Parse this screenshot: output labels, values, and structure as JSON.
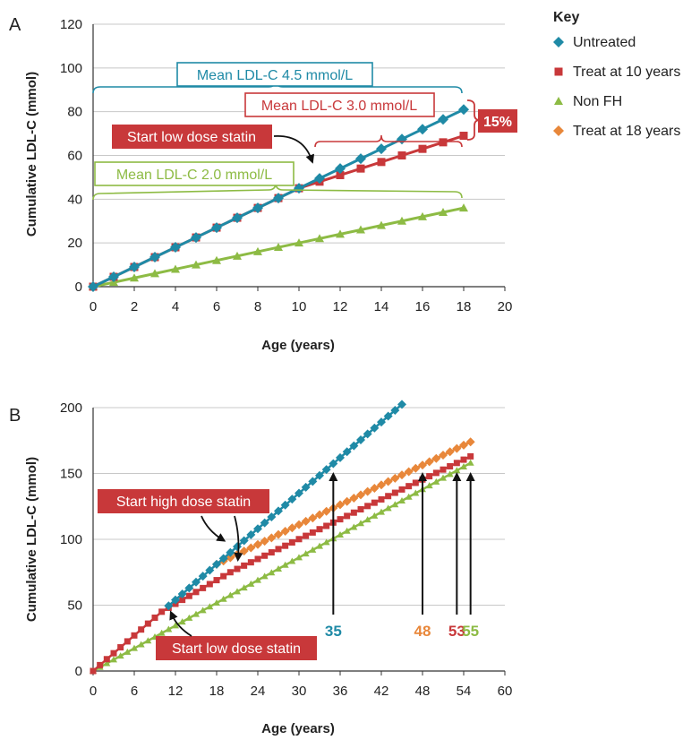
{
  "colors": {
    "untreated": "#1f8aa6",
    "treat10": "#c8383a",
    "nonfh": "#8dbb44",
    "treat18": "#e8873a"
  },
  "key": {
    "title": "Key",
    "items": [
      "Untreated",
      "Treat at 10 years",
      "Non FH",
      "Treat at 18 years"
    ],
    "markers": [
      "diamond",
      "square",
      "triangle",
      "diamond"
    ]
  },
  "chart_data": [
    {
      "panel": "A",
      "type": "line",
      "xlabel": "Age (years)",
      "ylabel": "Cumulative LDL-C (mmol)",
      "xlim": [
        0,
        20
      ],
      "ylim": [
        0,
        120
      ],
      "xticks": [
        0,
        2,
        4,
        6,
        8,
        10,
        12,
        14,
        16,
        18,
        20
      ],
      "yticks": [
        0,
        20,
        40,
        60,
        80,
        100,
        120
      ],
      "series": [
        {
          "name": "Untreated",
          "x": [
            0,
            1,
            2,
            3,
            4,
            5,
            6,
            7,
            8,
            9,
            10,
            11,
            12,
            13,
            14,
            15,
            16,
            17,
            18
          ],
          "values": [
            0,
            4.5,
            9,
            13.5,
            18,
            22.5,
            27,
            31.5,
            36,
            40.5,
            45,
            49.5,
            54,
            58.5,
            63,
            67.5,
            72,
            76.5,
            81
          ]
        },
        {
          "name": "Treat at 10 years",
          "x": [
            0,
            1,
            2,
            3,
            4,
            5,
            6,
            7,
            8,
            9,
            10,
            11,
            12,
            13,
            14,
            15,
            16,
            17,
            18
          ],
          "values": [
            0,
            4.5,
            9,
            13.5,
            18,
            22.5,
            27,
            31.5,
            36,
            40.5,
            45,
            48,
            51,
            54,
            57,
            60,
            63,
            66,
            69
          ]
        },
        {
          "name": "Non FH",
          "x": [
            0,
            1,
            2,
            3,
            4,
            5,
            6,
            7,
            8,
            9,
            10,
            11,
            12,
            13,
            14,
            15,
            16,
            17,
            18
          ],
          "values": [
            0,
            2,
            4,
            6,
            8,
            10,
            12,
            14,
            16,
            18,
            20,
            22,
            24,
            26,
            28,
            30,
            32,
            34,
            36
          ]
        }
      ],
      "annotations": {
        "mean_untreated": "Mean LDL-C 4.5 mmol/L",
        "mean_treat": "Mean LDL-C 3.0 mmol/L",
        "mean_nonfh": "Mean LDL-C 2.0 mmol/L",
        "start_low": "Start low dose statin",
        "diff": "15%"
      }
    },
    {
      "panel": "B",
      "type": "line",
      "xlabel": "Age (years)",
      "ylabel": "Cumulative LDL-C (mmol)",
      "xlim": [
        0,
        60
      ],
      "ylim": [
        0,
        200
      ],
      "xticks": [
        0,
        6,
        12,
        18,
        24,
        30,
        36,
        42,
        48,
        54,
        60
      ],
      "yticks": [
        0,
        50,
        100,
        150,
        200
      ],
      "series": [
        {
          "name": "Untreated",
          "x_start": 11,
          "x_end": 45,
          "y_start": 49.5,
          "y_end": 202.5
        },
        {
          "name": "Treat at 10 years",
          "x_start": 0,
          "x_end": 55,
          "piecewise": [
            [
              0,
              0
            ],
            [
              10,
              45
            ],
            [
              20,
              75
            ],
            [
              55,
              163
            ]
          ]
        },
        {
          "name": "Non FH",
          "x_start": 0,
          "x_end": 55,
          "y_start": 0,
          "y_end": 158
        },
        {
          "name": "Treat at 18 years",
          "x_start": 18,
          "x_end": 55,
          "y_start": 81,
          "y_end": 174
        }
      ],
      "annotations": {
        "start_high": "Start high dose statin",
        "start_low": "Start low dose statin",
        "ages": [
          {
            "label": "35",
            "x": 35,
            "series": "Untreated"
          },
          {
            "label": "48",
            "x": 48,
            "series": "Treat at 18 years"
          },
          {
            "label": "53",
            "x": 53,
            "series": "Treat at 10 years"
          },
          {
            "label": "55",
            "x": 55,
            "series": "Non FH"
          }
        ]
      }
    }
  ]
}
